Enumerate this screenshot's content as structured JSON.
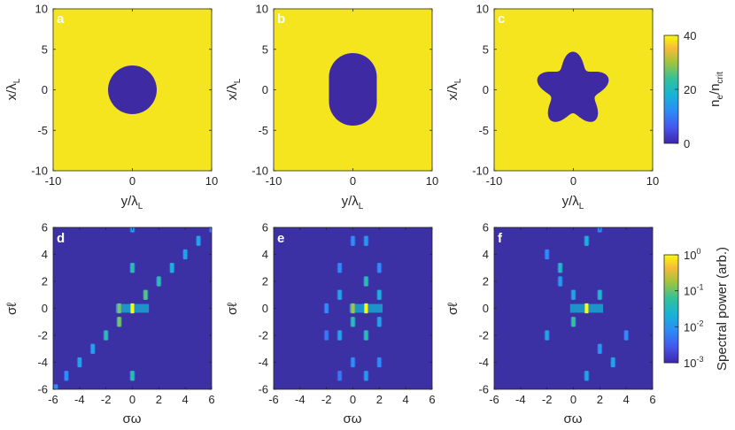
{
  "colors": {
    "plasma_high": "#f5e51f",
    "plasma_low": "#3e2ba3",
    "spectrum_bg": "#3b31a5",
    "axis": "#262626"
  },
  "chart_data": [
    {
      "panel": "a",
      "type": "heatmap",
      "shape": "disk",
      "xlabel": "y/λL",
      "ylabel": "x/λL",
      "xlim": [
        -10,
        10
      ],
      "ylim": [
        -10,
        10
      ],
      "xticks": [
        "-10",
        "0",
        "10"
      ],
      "yticks": [
        "10",
        "5",
        "0",
        "-5",
        "-10"
      ],
      "target_radius": 3
    },
    {
      "panel": "b",
      "type": "heatmap",
      "shape": "stadium",
      "xlabel": "y/λL",
      "ylabel": "x/λL",
      "xlim": [
        -10,
        10
      ],
      "ylim": [
        -10,
        10
      ],
      "xticks": [
        "-10",
        "0",
        "10"
      ],
      "yticks": [
        "10",
        "5",
        "0",
        "-5",
        "-10"
      ],
      "half_width": 3,
      "half_height": 4.5
    },
    {
      "panel": "c",
      "type": "heatmap",
      "shape": "five-pointed star",
      "xlabel": "y/λL",
      "ylabel": "x/λL",
      "xlim": [
        -10,
        10
      ],
      "ylim": [
        -10,
        10
      ],
      "xticks": [
        "-10",
        "0",
        "10"
      ],
      "yticks": [
        "10",
        "5",
        "0",
        "-5",
        "-10"
      ],
      "colorbar": {
        "label": "ne/ncrit",
        "range": [
          0,
          40
        ],
        "ticks": [
          "40",
          "20",
          "0"
        ]
      }
    },
    {
      "panel": "d",
      "type": "heatmap",
      "xlabel": "σω",
      "ylabel": "σℓ",
      "xlim": [
        -6,
        6
      ],
      "ylim": [
        -6,
        6
      ],
      "xticks": [
        "-6",
        "-4",
        "-2",
        "0",
        "2",
        "4",
        "6"
      ],
      "yticks": [
        "6",
        "4",
        "2",
        "0",
        "-2",
        "-4",
        "-6"
      ],
      "peaks": [
        [
          -5.8,
          -6,
          0.3
        ],
        [
          -5,
          -5,
          0.3
        ],
        [
          -4,
          -4,
          0.4
        ],
        [
          -3,
          -3,
          0.4
        ],
        [
          -2,
          -2,
          0.55
        ],
        [
          -1,
          -1,
          0.7
        ],
        [
          0,
          0,
          1.0
        ],
        [
          1,
          1,
          0.65
        ],
        [
          2,
          2,
          0.55
        ],
        [
          3,
          3,
          0.45
        ],
        [
          4,
          4,
          0.4
        ],
        [
          5,
          5,
          0.4
        ],
        [
          6,
          6,
          0.3
        ],
        [
          -1,
          0,
          0.7
        ],
        [
          0,
          3,
          0.55
        ],
        [
          0,
          -5,
          0.55
        ],
        [
          0,
          6,
          0.35
        ]
      ]
    },
    {
      "panel": "e",
      "type": "heatmap",
      "xlabel": "σω",
      "ylabel": "σℓ",
      "xlim": [
        -6,
        6
      ],
      "ylim": [
        -6,
        6
      ],
      "xticks": [
        "-6",
        "-4",
        "-2",
        "0",
        "2",
        "4",
        "6"
      ],
      "yticks": [
        "6",
        "4",
        "2",
        "0",
        "-2",
        "-4",
        "-6"
      ],
      "peaks": [
        [
          1,
          0,
          1.0
        ],
        [
          0,
          0,
          0.75
        ],
        [
          1,
          2,
          0.55
        ],
        [
          1,
          -2,
          0.55
        ],
        [
          0,
          -1,
          0.55
        ],
        [
          2,
          1,
          0.45
        ],
        [
          -1,
          1,
          0.4
        ],
        [
          -1,
          -2,
          0.4
        ],
        [
          2,
          -1,
          0.4
        ],
        [
          1,
          5,
          0.35
        ],
        [
          1,
          -5,
          0.35
        ],
        [
          0,
          5,
          0.3
        ],
        [
          -1,
          3,
          0.3
        ],
        [
          2,
          3,
          0.3
        ],
        [
          0,
          -4,
          0.3
        ],
        [
          2,
          -4,
          0.3
        ],
        [
          -2,
          0,
          0.3
        ],
        [
          -2,
          -2,
          0.25
        ],
        [
          -1,
          -5,
          0.25
        ]
      ]
    },
    {
      "panel": "f",
      "type": "heatmap",
      "xlabel": "σω",
      "ylabel": "σℓ",
      "xlim": [
        -6,
        6
      ],
      "ylim": [
        -6,
        6
      ],
      "xticks": [
        "-6",
        "-4",
        "-2",
        "0",
        "2",
        "4",
        "6"
      ],
      "yticks": [
        "6",
        "4",
        "2",
        "0",
        "-2",
        "-4",
        "-6"
      ],
      "colorbar": {
        "label": "Spectral power (arb.)",
        "scale": "log",
        "range": [
          0.001,
          1
        ],
        "ticks": [
          "10^0",
          "10^-1",
          "10^-2",
          "10^-3"
        ]
      },
      "peaks": [
        [
          1,
          0,
          1.0
        ],
        [
          0,
          -1,
          0.6
        ],
        [
          -1,
          3,
          0.5
        ],
        [
          2,
          1,
          0.5
        ],
        [
          1,
          5,
          0.45
        ],
        [
          0,
          1,
          0.4
        ],
        [
          -2,
          -2,
          0.4
        ],
        [
          3,
          -4,
          0.4
        ],
        [
          1,
          -5,
          0.4
        ],
        [
          2,
          -3,
          0.35
        ],
        [
          -1,
          2,
          0.35
        ],
        [
          4,
          -2,
          0.3
        ],
        [
          -2,
          4,
          0.3
        ],
        [
          2,
          6,
          0.3
        ]
      ]
    }
  ],
  "text": {
    "label_a": "a",
    "label_b": "b",
    "label_c": "c",
    "label_d": "d",
    "label_e": "e",
    "label_f": "f",
    "ylabel_top_main": "x/λ",
    "ylabel_top_sub": "L",
    "xlabel_top_main": "y/λ",
    "xlabel_top_sub": "L",
    "ylabel_bottom": "σℓ",
    "xlabel_bottom": "σω",
    "cbar_top_main": "n",
    "cbar_top_sub1": "e",
    "cbar_top_mid": "/n",
    "cbar_top_sub2": "crit",
    "cbar_bottom_label": "Spectral power (arb.)",
    "top_xticks": [
      "-10",
      "0",
      "10"
    ],
    "top_yticks": [
      "10",
      "5",
      "0",
      "-5",
      "-10"
    ],
    "bottom_xticks": [
      "-6",
      "-4",
      "-2",
      "0",
      "2",
      "4",
      "6"
    ],
    "bottom_yticks": [
      "6",
      "4",
      "2",
      "0",
      "-2",
      "-4",
      "-6"
    ],
    "cbar_top_ticks": [
      "40",
      "20",
      "0"
    ],
    "cbar_bottom_ticks": [
      "10",
      "10",
      "10",
      "10"
    ],
    "cbar_bottom_exps": [
      "0",
      "-1",
      "-2",
      "-3"
    ]
  }
}
